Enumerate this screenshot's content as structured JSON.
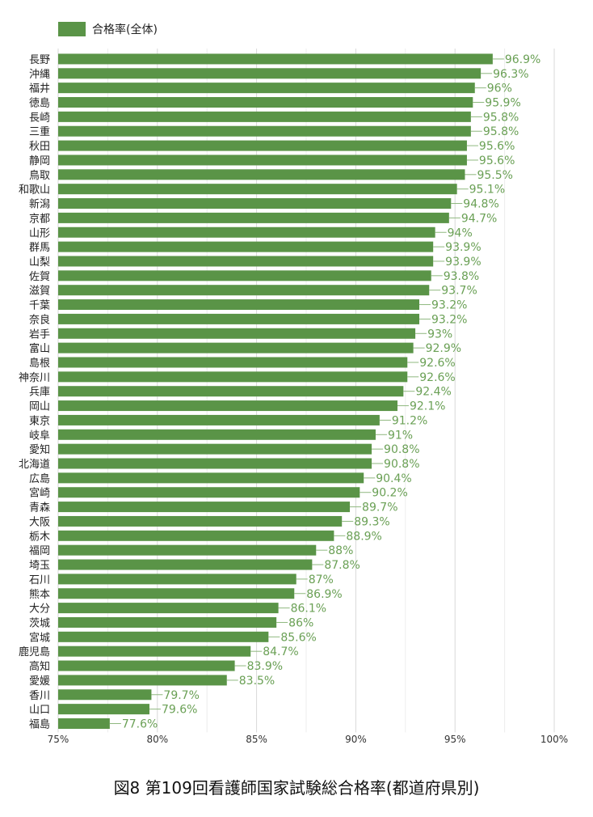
{
  "chart_data": {
    "type": "bar",
    "orientation": "horizontal",
    "series": [
      {
        "name": "合格率(全体)",
        "color": "#5a9447"
      }
    ],
    "categories": [
      "長野",
      "沖縄",
      "福井",
      "徳島",
      "長崎",
      "三重",
      "秋田",
      "静岡",
      "鳥取",
      "和歌山",
      "新潟",
      "京都",
      "山形",
      "群馬",
      "山梨",
      "佐賀",
      "滋賀",
      "千葉",
      "奈良",
      "岩手",
      "富山",
      "島根",
      "神奈川",
      "兵庫",
      "岡山",
      "東京",
      "岐阜",
      "愛知",
      "北海道",
      "広島",
      "宮崎",
      "青森",
      "大阪",
      "栃木",
      "福岡",
      "埼玉",
      "石川",
      "熊本",
      "大分",
      "茨城",
      "宮城",
      "鹿児島",
      "高知",
      "愛媛",
      "香川",
      "山口",
      "福島"
    ],
    "values": [
      96.9,
      96.3,
      96,
      95.9,
      95.8,
      95.8,
      95.6,
      95.6,
      95.5,
      95.1,
      94.8,
      94.7,
      94,
      93.9,
      93.9,
      93.8,
      93.7,
      93.2,
      93.2,
      93,
      92.9,
      92.6,
      92.6,
      92.4,
      92.1,
      91.2,
      91,
      90.8,
      90.8,
      90.4,
      90.2,
      89.7,
      89.3,
      88.9,
      88,
      87.8,
      87,
      86.9,
      86.1,
      86,
      85.6,
      84.7,
      83.9,
      83.5,
      79.7,
      79.6,
      77.6
    ],
    "value_labels": [
      "96.9%",
      "96.3%",
      "96%",
      "95.9%",
      "95.8%",
      "95.8%",
      "95.6%",
      "95.6%",
      "95.5%",
      "95.1%",
      "94.8%",
      "94.7%",
      "94%",
      "93.9%",
      "93.9%",
      "93.8%",
      "93.7%",
      "93.2%",
      "93.2%",
      "93%",
      "92.9%",
      "92.6%",
      "92.6%",
      "92.4%",
      "92.1%",
      "91.2%",
      "91%",
      "90.8%",
      "90.8%",
      "90.4%",
      "90.2%",
      "89.7%",
      "89.3%",
      "88.9%",
      "88%",
      "87.8%",
      "87%",
      "86.9%",
      "86.1%",
      "86%",
      "85.6%",
      "84.7%",
      "83.9%",
      "83.5%",
      "79.7%",
      "79.6%",
      "77.6%"
    ],
    "xlim": [
      75,
      100
    ],
    "x_ticks": [
      75,
      80,
      85,
      90,
      95,
      100
    ],
    "x_tick_labels": [
      "75%",
      "80%",
      "85%",
      "90%",
      "95%",
      "100%"
    ],
    "grid": true,
    "legend_position": "top-left"
  },
  "caption": "図8 第109回看護師国家試験総合格率(都道府県別)"
}
